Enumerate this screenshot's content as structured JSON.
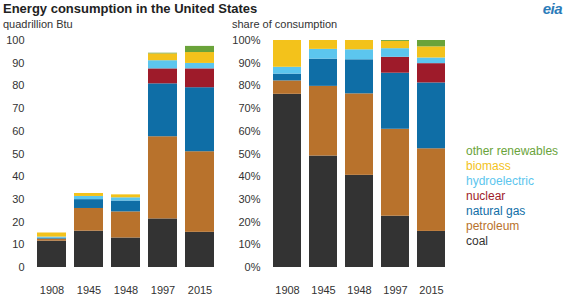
{
  "title": "Energy consumption in the United States",
  "logo": "eia",
  "chart_data": [
    {
      "type": "bar",
      "stacked": true,
      "grid": false,
      "y_label": "quadrillion Btu",
      "categories": [
        "1908",
        "1945",
        "1948",
        "1997",
        "2015"
      ],
      "ylim": [
        0,
        100
      ],
      "yticks": [
        0,
        10,
        20,
        30,
        40,
        50,
        60,
        70,
        80,
        90,
        100
      ],
      "series": [
        {
          "name": "coal",
          "color": "#333333",
          "values": [
            11.6,
            16.0,
            13.0,
            21.4,
            15.5
          ]
        },
        {
          "name": "petroleum",
          "color": "#b8722c",
          "values": [
            0.9,
            10.0,
            11.5,
            36.2,
            35.5
          ]
        },
        {
          "name": "natural gas",
          "color": "#0f6ea6",
          "values": [
            0.45,
            3.9,
            4.8,
            23.3,
            28.2
          ]
        },
        {
          "name": "nuclear",
          "color": "#9e1b2a",
          "values": [
            0,
            0,
            0,
            6.6,
            8.3
          ]
        },
        {
          "name": "hydroelectric",
          "color": "#5cc6ee",
          "values": [
            0.45,
            1.4,
            1.4,
            3.6,
            2.4
          ]
        },
        {
          "name": "biomass",
          "color": "#f3c21b",
          "values": [
            1.8,
            1.3,
            1.3,
            3.0,
            4.8
          ]
        },
        {
          "name": "other renewables",
          "color": "#6aa33a",
          "values": [
            0,
            0,
            0,
            0.3,
            2.7
          ]
        }
      ]
    },
    {
      "type": "bar",
      "stacked": true,
      "grid": false,
      "legend": "right",
      "y_label": "share of consumption",
      "categories": [
        "1908",
        "1945",
        "1948",
        "1997",
        "2015"
      ],
      "ylim": [
        0,
        100
      ],
      "yticks": [
        {
          "value": 0,
          "label": "0%"
        },
        {
          "value": 10,
          "label": "10%"
        },
        {
          "value": 20,
          "label": "20%"
        },
        {
          "value": 30,
          "label": "30%"
        },
        {
          "value": 40,
          "label": "40%"
        },
        {
          "value": 50,
          "label": "50%"
        },
        {
          "value": 60,
          "label": "60%"
        },
        {
          "value": 70,
          "label": "70%"
        },
        {
          "value": 80,
          "label": "80%"
        },
        {
          "value": 90,
          "label": "90%"
        },
        {
          "value": 100,
          "label": "100%"
        }
      ],
      "series": [
        {
          "name": "coal",
          "color": "#333333",
          "values": [
            76.3,
            49.1,
            40.6,
            22.6,
            15.9
          ]
        },
        {
          "name": "petroleum",
          "color": "#b8722c",
          "values": [
            5.9,
            30.7,
            35.9,
            38.3,
            36.4
          ]
        },
        {
          "name": "natural gas",
          "color": "#0f6ea6",
          "values": [
            3.0,
            12.0,
            15.0,
            24.7,
            29.0
          ]
        },
        {
          "name": "nuclear",
          "color": "#9e1b2a",
          "values": [
            0,
            0,
            0,
            7.0,
            8.5
          ]
        },
        {
          "name": "hydroelectric",
          "color": "#5cc6ee",
          "values": [
            3.0,
            4.3,
            4.4,
            3.8,
            2.5
          ]
        },
        {
          "name": "biomass",
          "color": "#f3c21b",
          "values": [
            11.8,
            3.9,
            4.1,
            3.2,
            4.9
          ]
        },
        {
          "name": "other renewables",
          "color": "#6aa33a",
          "values": [
            0,
            0,
            0,
            0.4,
            2.8
          ]
        }
      ]
    }
  ]
}
